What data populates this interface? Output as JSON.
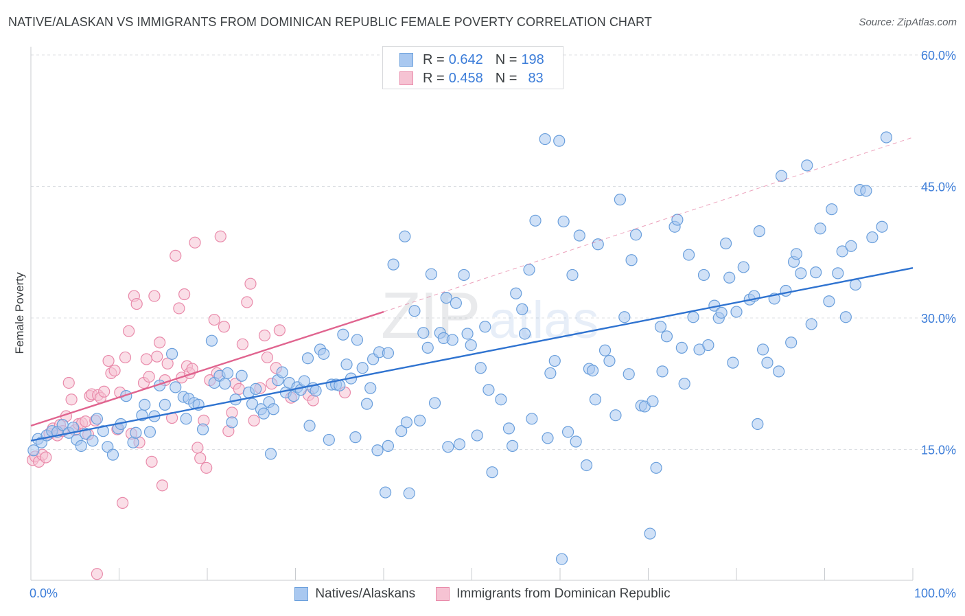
{
  "header": {
    "title": "NATIVE/ALASKAN VS IMMIGRANTS FROM DOMINICAN REPUBLIC FEMALE POVERTY CORRELATION CHART",
    "source": "Source: ZipAtlas.com"
  },
  "watermark": "ZIPatlas",
  "legend_top": [
    {
      "r_label": "R =",
      "r_value": "0.642",
      "n_label": "N =",
      "n_value": "198"
    },
    {
      "r_label": "R =",
      "r_value": "0.458",
      "n_label": "N =",
      "n_value": "83"
    }
  ],
  "colors": {
    "blue_fill": "#a9c8f0",
    "blue_stroke": "#6a9fdc",
    "blue_line": "#2f73d0",
    "pink_fill": "#f6c3d3",
    "pink_stroke": "#e98aaa",
    "pink_line": "#e0648f",
    "grid": "#dcdfe3",
    "axis_label": "#3c7dd9"
  },
  "chart_data": {
    "type": "scatter",
    "title": "NATIVE/ALASKAN VS IMMIGRANTS FROM DOMINICAN REPUBLIC FEMALE POVERTY CORRELATION CHART",
    "xlabel": "",
    "ylabel": "Female Poverty",
    "xlim": [
      0,
      100
    ],
    "ylim": [
      0,
      60
    ],
    "x_tick_labels": [
      "0.0%",
      "100.0%"
    ],
    "y_tick_labels": [
      "15.0%",
      "30.0%",
      "45.0%",
      "60.0%"
    ],
    "y_ticks": [
      15,
      30,
      45,
      60
    ],
    "legend_position": "bottom",
    "series": [
      {
        "name": "Natives/Alaskans",
        "r": 0.642,
        "n": 198,
        "trend": {
          "x0": 0,
          "y0": 16.0,
          "x1": 100,
          "y1": 35.7,
          "dash_to": null
        },
        "points": [
          [
            0.3,
            14.9
          ],
          [
            0.8,
            16.2
          ],
          [
            1.2,
            15.8
          ],
          [
            1.8,
            16.6
          ],
          [
            2.4,
            17.1
          ],
          [
            3.0,
            17.0
          ],
          [
            3.6,
            17.8
          ],
          [
            4.3,
            16.9
          ],
          [
            4.8,
            17.5
          ],
          [
            5.2,
            16.1
          ],
          [
            5.7,
            15.4
          ],
          [
            6.2,
            16.8
          ],
          [
            7.0,
            16.0
          ],
          [
            7.5,
            18.5
          ],
          [
            8.2,
            17.1
          ],
          [
            8.7,
            15.3
          ],
          [
            9.3,
            14.4
          ],
          [
            9.9,
            17.4
          ],
          [
            10.2,
            17.9
          ],
          [
            10.8,
            21.1
          ],
          [
            11.6,
            15.8
          ],
          [
            11.9,
            16.9
          ],
          [
            12.6,
            18.9
          ],
          [
            12.9,
            20.1
          ],
          [
            13.5,
            17.0
          ],
          [
            14.0,
            18.8
          ],
          [
            14.6,
            22.3
          ],
          [
            15.2,
            20.1
          ],
          [
            16.0,
            25.9
          ],
          [
            16.4,
            22.1
          ],
          [
            17.3,
            21.0
          ],
          [
            17.6,
            18.5
          ],
          [
            17.9,
            20.8
          ],
          [
            18.5,
            20.3
          ],
          [
            19.0,
            20.1
          ],
          [
            19.5,
            17.3
          ],
          [
            20.5,
            27.4
          ],
          [
            20.8,
            22.6
          ],
          [
            21.4,
            23.4
          ],
          [
            22.0,
            22.5
          ],
          [
            22.3,
            23.7
          ],
          [
            22.8,
            18.1
          ],
          [
            23.2,
            20.7
          ],
          [
            23.9,
            23.4
          ],
          [
            24.7,
            21.5
          ],
          [
            25.1,
            20.2
          ],
          [
            25.5,
            21.9
          ],
          [
            26.1,
            19.6
          ],
          [
            26.4,
            19.1
          ],
          [
            27.0,
            20.4
          ],
          [
            27.5,
            19.6
          ],
          [
            28.0,
            22.9
          ],
          [
            28.5,
            23.8
          ],
          [
            28.9,
            21.5
          ],
          [
            29.3,
            22.6
          ],
          [
            29.8,
            21.1
          ],
          [
            30.2,
            22.1
          ],
          [
            30.6,
            21.8
          ],
          [
            31.0,
            22.8
          ],
          [
            31.6,
            17.7
          ],
          [
            32.0,
            22.0
          ],
          [
            32.3,
            21.7
          ],
          [
            32.8,
            26.4
          ],
          [
            33.2,
            25.9
          ],
          [
            33.8,
            16.1
          ],
          [
            34.1,
            22.4
          ],
          [
            34.6,
            22.4
          ],
          [
            35.0,
            22.3
          ],
          [
            35.4,
            28.1
          ],
          [
            35.8,
            24.7
          ],
          [
            36.3,
            23.1
          ],
          [
            36.8,
            16.4
          ],
          [
            37.0,
            27.5
          ],
          [
            37.6,
            24.3
          ],
          [
            38.1,
            20.2
          ],
          [
            38.5,
            22.0
          ],
          [
            38.8,
            25.3
          ],
          [
            39.3,
            14.9
          ],
          [
            39.5,
            26.1
          ],
          [
            40.2,
            10.1
          ],
          [
            40.5,
            15.4
          ],
          [
            41.1,
            36.1
          ],
          [
            42.0,
            17.1
          ],
          [
            42.4,
            39.3
          ],
          [
            42.6,
            18.1
          ],
          [
            42.9,
            10.0
          ],
          [
            43.5,
            30.8
          ],
          [
            44.1,
            18.3
          ],
          [
            44.5,
            28.3
          ],
          [
            45.0,
            26.6
          ],
          [
            45.4,
            35.0
          ],
          [
            45.8,
            20.3
          ],
          [
            46.4,
            28.3
          ],
          [
            46.8,
            27.7
          ],
          [
            47.3,
            15.3
          ],
          [
            47.8,
            27.5
          ],
          [
            48.2,
            31.7
          ],
          [
            48.6,
            15.6
          ],
          [
            49.1,
            34.9
          ],
          [
            49.5,
            28.2
          ],
          [
            49.9,
            26.9
          ],
          [
            50.6,
            16.6
          ],
          [
            51.0,
            24.3
          ],
          [
            51.5,
            29.0
          ],
          [
            51.9,
            21.8
          ],
          [
            52.3,
            12.4
          ],
          [
            53.3,
            20.7
          ],
          [
            54.2,
            17.4
          ],
          [
            54.6,
            15.4
          ],
          [
            55.0,
            32.8
          ],
          [
            55.7,
            31.0
          ],
          [
            56.0,
            28.2
          ],
          [
            56.5,
            35.5
          ],
          [
            57.2,
            41.1
          ],
          [
            58.3,
            50.4
          ],
          [
            58.6,
            16.3
          ],
          [
            58.9,
            23.7
          ],
          [
            59.4,
            25.1
          ],
          [
            59.9,
            50.2
          ],
          [
            60.4,
            41.0
          ],
          [
            60.9,
            17.0
          ],
          [
            61.4,
            34.9
          ],
          [
            61.8,
            15.9
          ],
          [
            62.2,
            39.4
          ],
          [
            63.0,
            13.2
          ],
          [
            63.3,
            24.2
          ],
          [
            63.7,
            24.0
          ],
          [
            64.3,
            38.4
          ],
          [
            65.1,
            26.3
          ],
          [
            65.6,
            25.1
          ],
          [
            66.3,
            18.9
          ],
          [
            66.8,
            43.5
          ],
          [
            67.3,
            30.1
          ],
          [
            67.8,
            23.6
          ],
          [
            68.1,
            36.6
          ],
          [
            68.6,
            39.5
          ],
          [
            69.2,
            20.0
          ],
          [
            69.6,
            19.9
          ],
          [
            70.2,
            5.4
          ],
          [
            70.5,
            20.5
          ],
          [
            70.9,
            12.9
          ],
          [
            71.4,
            29.0
          ],
          [
            71.6,
            23.9
          ],
          [
            72.1,
            27.9
          ],
          [
            73.0,
            40.4
          ],
          [
            73.3,
            41.2
          ],
          [
            74.1,
            22.5
          ],
          [
            74.6,
            37.2
          ],
          [
            75.1,
            30.1
          ],
          [
            75.8,
            26.4
          ],
          [
            76.3,
            34.9
          ],
          [
            76.8,
            26.9
          ],
          [
            77.5,
            31.4
          ],
          [
            78.0,
            30.0
          ],
          [
            78.3,
            30.6
          ],
          [
            78.8,
            38.5
          ],
          [
            79.2,
            34.6
          ],
          [
            79.6,
            24.9
          ],
          [
            80.0,
            30.7
          ],
          [
            80.8,
            35.8
          ],
          [
            81.5,
            32.1
          ],
          [
            82.0,
            32.5
          ],
          [
            82.4,
            17.9
          ],
          [
            82.6,
            39.9
          ],
          [
            83.0,
            26.4
          ],
          [
            83.5,
            24.9
          ],
          [
            84.3,
            32.2
          ],
          [
            84.8,
            23.9
          ],
          [
            85.1,
            46.2
          ],
          [
            85.6,
            33.1
          ],
          [
            86.2,
            27.2
          ],
          [
            86.5,
            36.4
          ],
          [
            86.8,
            37.3
          ],
          [
            87.3,
            35.1
          ],
          [
            88.0,
            47.4
          ],
          [
            88.5,
            29.3
          ],
          [
            89.0,
            35.2
          ],
          [
            89.5,
            40.2
          ],
          [
            90.5,
            31.9
          ],
          [
            90.8,
            42.4
          ],
          [
            91.5,
            35.1
          ],
          [
            92.0,
            37.6
          ],
          [
            92.4,
            30.1
          ],
          [
            93.0,
            38.2
          ],
          [
            93.5,
            33.8
          ],
          [
            94.0,
            44.6
          ],
          [
            94.7,
            44.5
          ],
          [
            95.4,
            39.2
          ],
          [
            96.5,
            40.4
          ],
          [
            97.0,
            50.6
          ],
          [
            56.8,
            18.5
          ],
          [
            27.2,
            14.5
          ],
          [
            40.5,
            26.0
          ],
          [
            73.8,
            26.6
          ],
          [
            31.4,
            25.4
          ],
          [
            60.2,
            2.5
          ],
          [
            64.0,
            20.7
          ],
          [
            47.1,
            32.3
          ]
        ]
      },
      {
        "name": "Immigrants from Dominican Republic",
        "r": 0.458,
        "n": 83,
        "trend": {
          "x0": 0,
          "y0": 17.7,
          "x1": 40,
          "y1": 30.7,
          "dash_to": {
            "x": 100,
            "y": 50.6
          }
        },
        "points": [
          [
            0.2,
            13.8
          ],
          [
            0.5,
            14.2
          ],
          [
            0.9,
            13.6
          ],
          [
            1.3,
            14.4
          ],
          [
            1.7,
            14.1
          ],
          [
            2.1,
            16.8
          ],
          [
            2.5,
            17.4
          ],
          [
            3.0,
            16.6
          ],
          [
            3.3,
            17.8
          ],
          [
            3.6,
            17.1
          ],
          [
            4.0,
            18.8
          ],
          [
            4.3,
            22.6
          ],
          [
            4.6,
            20.7
          ],
          [
            5.0,
            17.2
          ],
          [
            5.4,
            17.9
          ],
          [
            5.8,
            18.0
          ],
          [
            6.2,
            18.2
          ],
          [
            6.5,
            16.7
          ],
          [
            6.7,
            21.1
          ],
          [
            6.9,
            21.3
          ],
          [
            7.3,
            18.3
          ],
          [
            7.6,
            21.2
          ],
          [
            7.9,
            20.9
          ],
          [
            8.3,
            21.6
          ],
          [
            8.8,
            25.1
          ],
          [
            9.1,
            23.7
          ],
          [
            9.5,
            24.0
          ],
          [
            9.8,
            17.3
          ],
          [
            10.1,
            21.5
          ],
          [
            10.4,
            8.9
          ],
          [
            10.7,
            25.5
          ],
          [
            11.1,
            28.5
          ],
          [
            11.4,
            16.8
          ],
          [
            11.7,
            32.5
          ],
          [
            12.0,
            31.6
          ],
          [
            12.3,
            15.8
          ],
          [
            12.8,
            22.6
          ],
          [
            13.1,
            25.3
          ],
          [
            13.4,
            23.3
          ],
          [
            13.7,
            13.6
          ],
          [
            14.0,
            32.5
          ],
          [
            14.3,
            25.6
          ],
          [
            14.6,
            27.2
          ],
          [
            14.9,
            10.9
          ],
          [
            15.2,
            22.9
          ],
          [
            15.5,
            24.8
          ],
          [
            16.0,
            18.6
          ],
          [
            16.4,
            37.1
          ],
          [
            16.8,
            31.1
          ],
          [
            17.1,
            23.2
          ],
          [
            17.4,
            32.7
          ],
          [
            17.7,
            24.5
          ],
          [
            18.0,
            23.7
          ],
          [
            18.3,
            24.2
          ],
          [
            18.6,
            38.6
          ],
          [
            18.9,
            15.2
          ],
          [
            19.2,
            14.0
          ],
          [
            19.6,
            18.3
          ],
          [
            19.9,
            12.9
          ],
          [
            20.3,
            22.9
          ],
          [
            20.8,
            29.8
          ],
          [
            21.1,
            23.7
          ],
          [
            21.5,
            39.3
          ],
          [
            21.9,
            29.0
          ],
          [
            22.4,
            17.1
          ],
          [
            22.8,
            19.2
          ],
          [
            23.2,
            22.5
          ],
          [
            23.6,
            21.9
          ],
          [
            24.0,
            27.0
          ],
          [
            24.5,
            31.8
          ],
          [
            24.9,
            33.9
          ],
          [
            25.3,
            18.3
          ],
          [
            26.0,
            22.0
          ],
          [
            26.5,
            28.0
          ],
          [
            26.8,
            25.5
          ],
          [
            27.3,
            22.5
          ],
          [
            27.8,
            24.3
          ],
          [
            28.2,
            28.6
          ],
          [
            29.5,
            20.9
          ],
          [
            31.5,
            21.2
          ],
          [
            32.0,
            20.6
          ],
          [
            35.6,
            21.5
          ],
          [
            7.5,
            0.8
          ]
        ]
      }
    ]
  },
  "bottom_legend": [
    {
      "label": "Natives/Alaskans"
    },
    {
      "label": "Immigrants from Dominican Republic"
    }
  ]
}
